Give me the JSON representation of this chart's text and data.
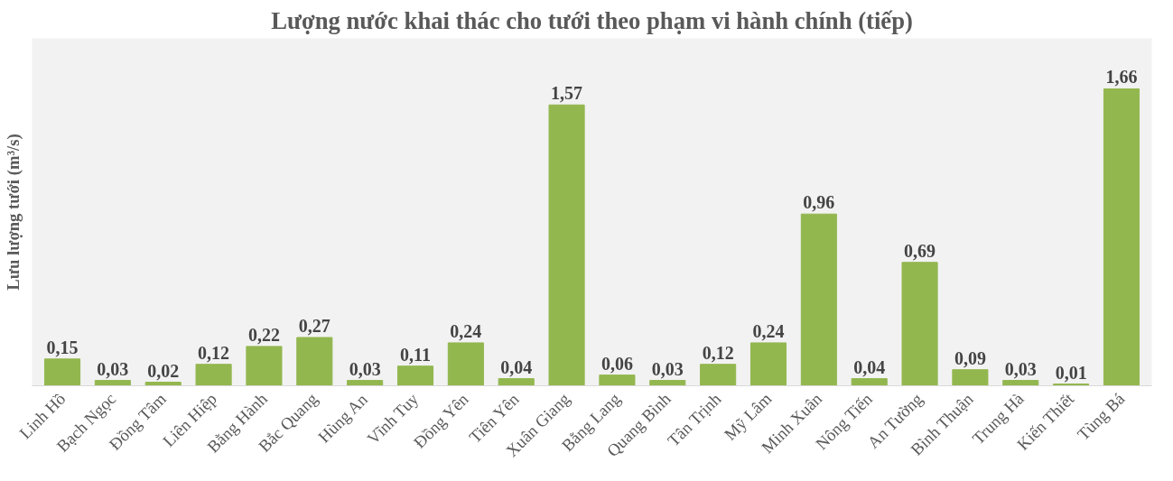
{
  "chart_data": {
    "type": "bar",
    "title": "Lượng nước khai thác cho tưới theo phạm vi hành chính (tiếp)",
    "ylabel": "Lưu lượng tưới (m³/s)",
    "categories": [
      "Linh Hồ",
      "Bạch Ngọc",
      "Đồng Tâm",
      "Liên Hiệp",
      "Bằng Hành",
      "Bắc Quang",
      "Hùng An",
      "Vĩnh Tuy",
      "Đồng Yên",
      "Tiên Yên",
      "Xuân Giang",
      "Bằng Lang",
      "Quang Bình",
      "Tân Trịnh",
      "Mỹ Lâm",
      "Minh Xuân",
      "Nông Tiến",
      "An Tường",
      "Bình Thuận",
      "Trung Hà",
      "Kiến Thiết",
      "Tùng Bá"
    ],
    "values": [
      0.15,
      0.03,
      0.02,
      0.12,
      0.22,
      0.27,
      0.03,
      0.11,
      0.24,
      0.04,
      1.57,
      0.06,
      0.03,
      0.12,
      0.24,
      0.96,
      0.04,
      0.69,
      0.09,
      0.03,
      0.01,
      1.66
    ],
    "value_labels": [
      "0,15",
      "0,03",
      "0,02",
      "0,12",
      "0,22",
      "0,27",
      "0,03",
      "0,11",
      "0,24",
      "0,04",
      "1,57",
      "0,06",
      "0,03",
      "0,12",
      "0,24",
      "0,96",
      "0,04",
      "0,69",
      "0,09",
      "0,03",
      "0,01",
      "1,66"
    ],
    "color": "#93b74f",
    "grid": false,
    "tick_labels": "x"
  }
}
